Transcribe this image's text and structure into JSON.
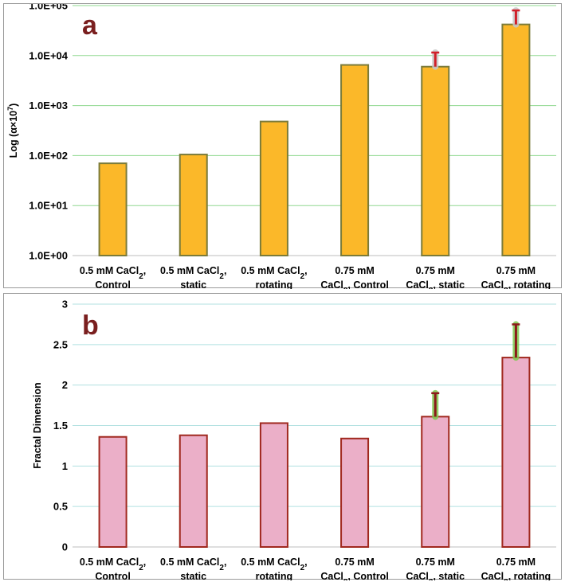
{
  "chart_data": [
    {
      "type": "bar",
      "panel_label": "a",
      "ylabel_prefix": "Log (α×10",
      "ylabel_exp": "7",
      "ylabel_suffix": ")",
      "yscale": "log",
      "ylim": [
        1,
        100000
      ],
      "yticks": [
        1,
        10,
        100,
        1000,
        10000,
        100000
      ],
      "ytick_labels": [
        "1.0E+00",
        "1.0E+01",
        "1.0E+02",
        "1.0E+03",
        "1.0E+04",
        "1.0E+05"
      ],
      "grid": true,
      "categories": [
        {
          "line1_prefix": "0.5 mM CaCl",
          "line1_sub": "2",
          "line1_suffix": ",",
          "line2_prefix": "Control",
          "line2_sub": "",
          "line2_suffix": ""
        },
        {
          "line1_prefix": "0.5 mM CaCl",
          "line1_sub": "2",
          "line1_suffix": ",",
          "line2_prefix": "static",
          "line2_sub": "",
          "line2_suffix": ""
        },
        {
          "line1_prefix": "0.5 mM CaCl",
          "line1_sub": "2",
          "line1_suffix": ",",
          "line2_prefix": "rotating",
          "line2_sub": "",
          "line2_suffix": ""
        },
        {
          "line1_prefix": "0.75 mM",
          "line1_sub": "",
          "line1_suffix": "",
          "line2_prefix": "CaCl",
          "line2_sub": "2",
          "line2_suffix": ", Control"
        },
        {
          "line1_prefix": "0.75 mM",
          "line1_sub": "",
          "line1_suffix": "",
          "line2_prefix": "CaCl",
          "line2_sub": "2",
          "line2_suffix": ", static"
        },
        {
          "line1_prefix": "0.75 mM",
          "line1_sub": "",
          "line1_suffix": "",
          "line2_prefix": "CaCl",
          "line2_sub": "2",
          "line2_suffix": ", rotating"
        }
      ],
      "values": [
        70,
        105,
        480,
        6500,
        6000,
        42000
      ],
      "error_upper": [
        null,
        null,
        null,
        null,
        11500,
        80000
      ],
      "colors": {
        "fill": "#FBB829",
        "stroke": "#7B7B3A",
        "grid": "#8FD88F",
        "error": "#D0202A",
        "error_halo": "#C8C8C8",
        "letter": "#7A1F1F"
      }
    },
    {
      "type": "bar",
      "panel_label": "b",
      "ylabel": "Fractal Dimension",
      "yscale": "linear",
      "ylim": [
        0,
        3
      ],
      "yticks": [
        0,
        0.5,
        1,
        1.5,
        2,
        2.5,
        3
      ],
      "ytick_labels": [
        "0",
        "0.5",
        "1",
        "1.5",
        "2",
        "2.5",
        "3"
      ],
      "grid": true,
      "categories": [
        {
          "line1_prefix": "0.5 mM CaCl",
          "line1_sub": "2",
          "line1_suffix": ",",
          "line2_prefix": "Control",
          "line2_sub": "",
          "line2_suffix": ""
        },
        {
          "line1_prefix": "0.5 mM CaCl",
          "line1_sub": "2",
          "line1_suffix": ",",
          "line2_prefix": "static",
          "line2_sub": "",
          "line2_suffix": ""
        },
        {
          "line1_prefix": "0.5 mM CaCl",
          "line1_sub": "2",
          "line1_suffix": ",",
          "line2_prefix": "rotating",
          "line2_sub": "",
          "line2_suffix": ""
        },
        {
          "line1_prefix": "0.75 mM",
          "line1_sub": "",
          "line1_suffix": "",
          "line2_prefix": "CaCl",
          "line2_sub": "2",
          "line2_suffix": ", Control"
        },
        {
          "line1_prefix": "0.75 mM",
          "line1_sub": "",
          "line1_suffix": "",
          "line2_prefix": "CaCl",
          "line2_sub": "2",
          "line2_suffix": ", static"
        },
        {
          "line1_prefix": "0.75 mM",
          "line1_sub": "",
          "line1_suffix": "",
          "line2_prefix": "CaCl",
          "line2_sub": "2",
          "line2_suffix": ", rotating"
        }
      ],
      "values": [
        1.36,
        1.38,
        1.53,
        1.34,
        1.61,
        2.34
      ],
      "error_upper": [
        null,
        null,
        null,
        null,
        1.9,
        2.75
      ],
      "colors": {
        "fill": "#EBAFC8",
        "stroke": "#A0281E",
        "grid": "#B0E0E0",
        "error": "#8B1A1A",
        "error_halo": "#7EC850",
        "letter": "#7A1F1F"
      }
    }
  ]
}
